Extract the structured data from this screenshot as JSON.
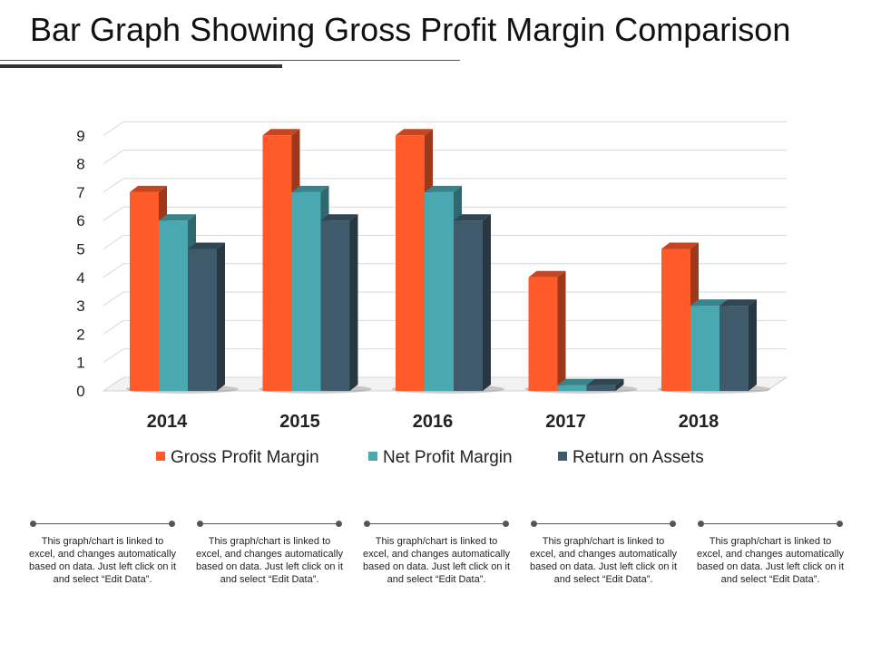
{
  "title": "Bar Graph Showing Gross Profit Margin Comparison",
  "chart_data": {
    "type": "bar",
    "categories": [
      "2014",
      "2015",
      "2016",
      "2017",
      "2018"
    ],
    "series": [
      {
        "name": "Gross Profit Margin",
        "values": [
          7,
          9,
          9,
          4,
          5
        ],
        "color": "#ff5a2a"
      },
      {
        "name": "Net Profit Margin",
        "values": [
          6,
          7,
          7,
          0.2,
          3
        ],
        "color": "#4aa8b1"
      },
      {
        "name": "Return on Assets",
        "values": [
          5,
          6,
          6,
          0.2,
          3
        ],
        "color": "#3f5a6b"
      }
    ],
    "yticks": [
      "0",
      "1",
      "2",
      "3",
      "4",
      "5",
      "6",
      "7",
      "8",
      "9"
    ],
    "ylim": [
      0,
      9
    ],
    "grid": true,
    "legend": "bottom",
    "style": "3d-clustered-column"
  },
  "notes": [
    "This graph/chart is linked to excel, and changes automatically based on data. Just left click on it and select “Edit Data”.",
    "This graph/chart is linked to excel, and changes automatically based on data. Just left click on it and select “Edit Data”.",
    "This graph/chart is linked to excel, and changes automatically based on data. Just left click on it and select “Edit Data”.",
    "This graph/chart is linked to excel, and changes automatically based on data. Just left click on it and select “Edit Data”.",
    "This graph/chart is linked to excel, and changes automatically based on data. Just left click on it and select “Edit Data”."
  ]
}
